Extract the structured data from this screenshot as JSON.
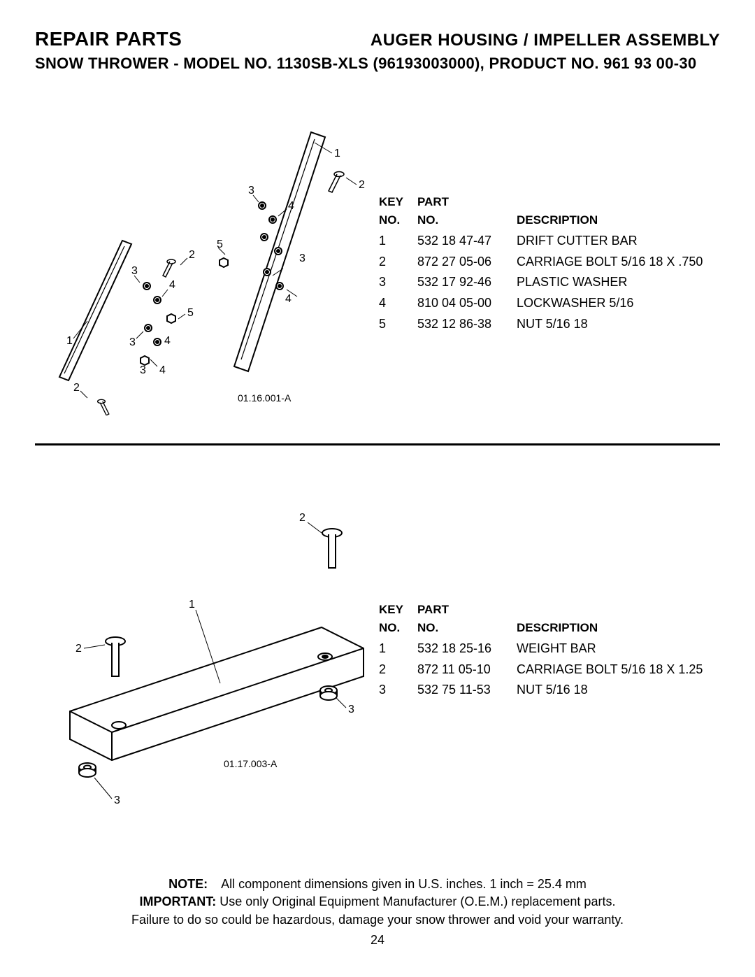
{
  "header": {
    "left_title": "REPAIR PARTS",
    "right_title": "AUGER HOUSING / IMPELLER ASSEMBLY",
    "model_prefix": "SNOW THROWER  -  MODEL NO.",
    "model_bold": "1130SB-XLS",
    "model_suffix": "(96193003000), PRODUCT NO. 961 93 00-30"
  },
  "table_headers": {
    "key1": "KEY",
    "key2": "NO.",
    "part1": "PART",
    "part2": "NO.",
    "desc": "DESCRIPTION"
  },
  "section1": {
    "diagram_code": "01.16.001-A",
    "rows": [
      {
        "key": "1",
        "part": "532 18 47-47",
        "desc": "DRIFT CUTTER BAR"
      },
      {
        "key": "2",
        "part": "872 27 05-06",
        "desc": "CARRIAGE BOLT 5/16   18 X .750"
      },
      {
        "key": "3",
        "part": "532 17 92-46",
        "desc": "PLASTIC WASHER"
      },
      {
        "key": "4",
        "part": "810 04 05-00",
        "desc": "LOCKWASHER 5/16"
      },
      {
        "key": "5",
        "part": "532 12 86-38",
        "desc": "NUT 5/16   18"
      }
    ]
  },
  "section2": {
    "diagram_code": "01.17.003-A",
    "rows": [
      {
        "key": "1",
        "part": "532 18 25-16",
        "desc": "WEIGHT BAR"
      },
      {
        "key": "2",
        "part": "872 11 05-10",
        "desc": "CARRIAGE BOLT 5/16   18 X 1.25"
      },
      {
        "key": "3",
        "part": "532 75 11-53",
        "desc": "NUT 5/16   18"
      }
    ]
  },
  "footer": {
    "note_label": "NOTE:",
    "note_text": "All component dimensions given in U.S. inches.    1 inch = 25.4 mm",
    "important_label": "IMPORTANT:",
    "important_text": "Use only Original Equipment Manufacturer (O.E.M.) replacement parts.",
    "warning_text": "Failure to do so could be hazardous, damage your snow thrower and void your warranty.",
    "page_number": "24"
  }
}
